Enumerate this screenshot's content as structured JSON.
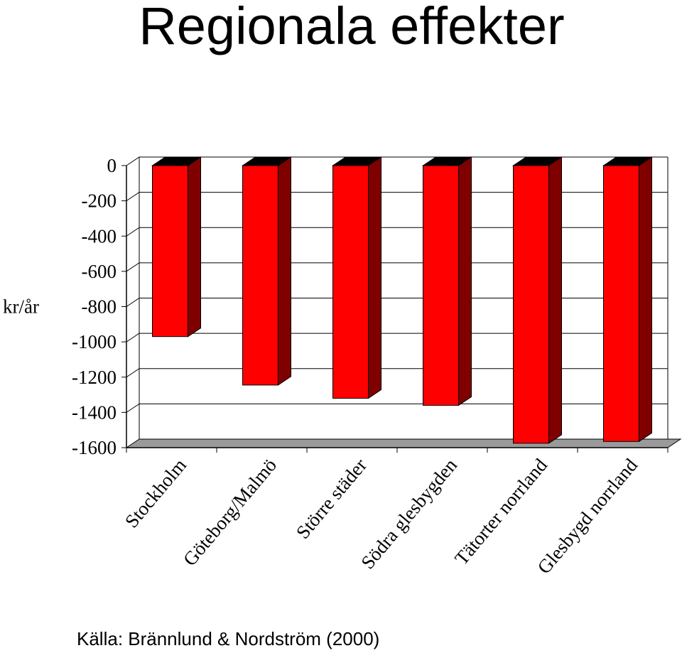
{
  "title": "Regionala effekter",
  "source": "Källa: Brännlund & Nordström (2000)",
  "colors": {
    "bar_front": "#ff0000",
    "bar_side": "#800000",
    "bar_top": "#000000",
    "floor": "#9a9a9a",
    "grid": "#000000"
  },
  "chart_data": {
    "type": "bar",
    "title": "Regionala effekter",
    "xlabel": "",
    "ylabel": "kr/år",
    "ylim": [
      -1600,
      0
    ],
    "yticks": [
      0,
      -200,
      -400,
      -600,
      -800,
      -1000,
      -1200,
      -1400,
      -1600
    ],
    "grid": true,
    "three_d": true,
    "categories": [
      "Stockholm",
      "Göteborg/Malmö",
      "Större städer",
      "Södra glesbygden",
      "Tätorter norrland",
      "Glesbygd norrland"
    ],
    "values": [
      -970,
      -1245,
      -1320,
      -1360,
      -1575,
      -1565
    ]
  }
}
